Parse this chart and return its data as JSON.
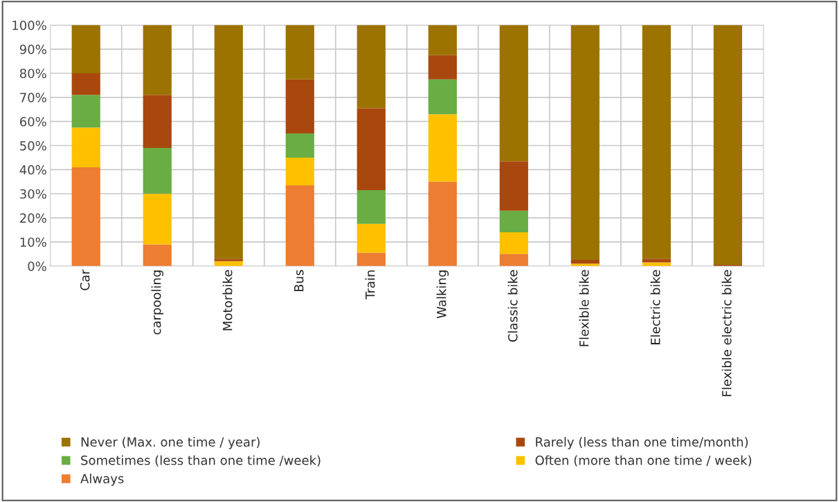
{
  "chart_data": {
    "type": "bar",
    "stacked": true,
    "grid": true,
    "legend": "bottom",
    "categories": [
      "Car",
      "carpooling",
      "Motorbike",
      "Bus",
      "Train",
      "Walking",
      "Classic bike",
      "Flexible bike",
      "Electric bike",
      "Flexible electric bike"
    ],
    "series": [
      {
        "name": "Always",
        "color": "#ed7d31",
        "values": [
          41,
          9,
          0,
          33.5,
          5.5,
          35,
          5,
          0,
          0,
          0
        ]
      },
      {
        "name": "Often (more than one time / week)",
        "color": "#ffc000",
        "values": [
          16.5,
          21,
          2,
          11.5,
          12,
          28,
          9,
          1,
          1.5,
          0
        ]
      },
      {
        "name": "Sometimes (less than one time /week)",
        "color": "#6aad45",
        "values": [
          13.5,
          19,
          0,
          10,
          14,
          14.5,
          9,
          0,
          0,
          0
        ]
      },
      {
        "name": "Rarely (less than one time/month)",
        "color": "#a9480e",
        "values": [
          9,
          22,
          1,
          22.5,
          34,
          10,
          20.5,
          1.5,
          1.5,
          0.5
        ]
      },
      {
        "name": "Never (Max. one time / year)",
        "color": "#9c7300",
        "values": [
          20,
          29,
          97,
          22.5,
          34.5,
          12.5,
          56.5,
          97.5,
          97,
          99.5
        ]
      }
    ],
    "ylim": [
      0,
      100
    ],
    "yticks": [
      {
        "value": 0,
        "label": "0%"
      },
      {
        "value": 10,
        "label": "10%"
      },
      {
        "value": 20,
        "label": "20%"
      },
      {
        "value": 30,
        "label": "30%"
      },
      {
        "value": 40,
        "label": "40%"
      },
      {
        "value": 50,
        "label": "50%"
      },
      {
        "value": 60,
        "label": "60%"
      },
      {
        "value": 70,
        "label": "70%"
      },
      {
        "value": 80,
        "label": "80%"
      },
      {
        "value": 90,
        "label": "90%"
      },
      {
        "value": 100,
        "label": "100%"
      }
    ]
  }
}
